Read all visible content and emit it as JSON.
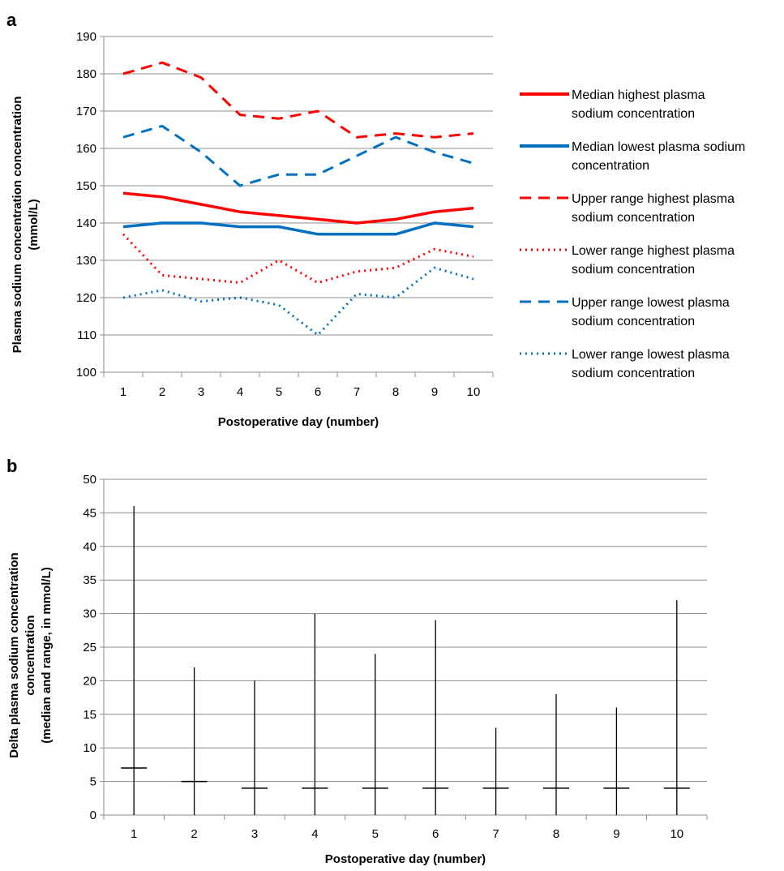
{
  "chart_data": [
    {
      "panel": "a",
      "type": "line",
      "xlabel": "Postoperative day (number)",
      "ylabel": [
        "Plasma sodium concentration concentration",
        "(mmol/L)"
      ],
      "ylim": [
        100,
        190
      ],
      "yticks": [
        100,
        110,
        120,
        130,
        140,
        150,
        160,
        170,
        180,
        190
      ],
      "categories": [
        "1",
        "2",
        "3",
        "4",
        "5",
        "6",
        "7",
        "8",
        "9",
        "10"
      ],
      "grid": true,
      "legend_position": "right",
      "series": [
        {
          "name": [
            "Median highest plasma",
            "sodium concentration"
          ],
          "color": "#ff0000",
          "style": "solid",
          "values": [
            148,
            147,
            145,
            143,
            142,
            141,
            140,
            141,
            143,
            144
          ]
        },
        {
          "name": [
            "Median lowest plasma sodium",
            "concentration"
          ],
          "color": "#0070c0",
          "style": "solid",
          "values": [
            139,
            140,
            140,
            139,
            139,
            137,
            137,
            137,
            140,
            139
          ]
        },
        {
          "name": [
            "Upper range highest plasma",
            "sodium concentration"
          ],
          "color": "#ff0000",
          "style": "dash",
          "values": [
            180,
            183,
            179,
            169,
            168,
            170,
            163,
            164,
            163,
            164
          ]
        },
        {
          "name": [
            "Lower range highest plasma",
            "sodium concentration"
          ],
          "color": "#ff0000",
          "style": "dot",
          "values": [
            137,
            126,
            125,
            124,
            130,
            124,
            127,
            128,
            133,
            131
          ]
        },
        {
          "name": [
            "Upper range lowest plasma",
            "sodium concentration"
          ],
          "color": "#0070c0",
          "style": "dash",
          "values": [
            163,
            166,
            159,
            150,
            153,
            153,
            158,
            163,
            159,
            156
          ]
        },
        {
          "name": [
            "Lower range lowest plasma",
            "sodium concentration"
          ],
          "color": "#0070c0",
          "style": "dot",
          "values": [
            120,
            122,
            119,
            120,
            118,
            110,
            121,
            120,
            128,
            125
          ]
        }
      ]
    },
    {
      "panel": "b",
      "type": "range",
      "xlabel": "Postoperative day (number)",
      "ylabel": [
        "Delta plasma sodium concentration",
        "concentration",
        "(median and range, in mmol/L)"
      ],
      "ylim": [
        0,
        50
      ],
      "yticks": [
        0,
        5,
        10,
        15,
        20,
        25,
        30,
        35,
        40,
        45,
        50
      ],
      "categories": [
        "1",
        "2",
        "3",
        "4",
        "5",
        "6",
        "7",
        "8",
        "9",
        "10"
      ],
      "grid": true,
      "min": [
        0,
        0,
        0,
        0,
        0,
        0,
        0,
        0,
        0,
        0
      ],
      "max": [
        46,
        22,
        20,
        30,
        24,
        29,
        13,
        18,
        16,
        32
      ],
      "median": [
        7,
        5,
        4,
        4,
        4,
        4,
        4,
        4,
        4,
        4
      ]
    }
  ],
  "panels": {
    "a": "a",
    "b": "b"
  }
}
